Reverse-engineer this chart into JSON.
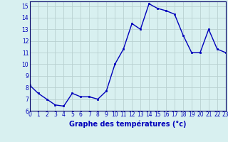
{
  "x": [
    0,
    1,
    2,
    3,
    4,
    5,
    6,
    7,
    8,
    9,
    10,
    11,
    12,
    13,
    14,
    15,
    16,
    17,
    18,
    19,
    20,
    21,
    22,
    23
  ],
  "y": [
    8.2,
    7.5,
    7.0,
    6.5,
    6.4,
    7.5,
    7.2,
    7.2,
    7.0,
    7.7,
    10.0,
    11.3,
    13.5,
    13.0,
    15.2,
    14.8,
    14.6,
    14.3,
    12.5,
    11.0,
    11.0,
    13.0,
    11.3,
    11.0
  ],
  "line_color": "#0000bb",
  "marker": "s",
  "marker_size": 2.0,
  "line_width": 1.0,
  "bg_color": "#d8f0f0",
  "grid_color": "#b8d0d0",
  "axis_label_color": "#0000bb",
  "tick_label_color": "#0000bb",
  "xlabel": "Graphe des températures (°c)",
  "xlim": [
    0,
    23
  ],
  "ylim": [
    6,
    15.4
  ],
  "yticks": [
    6,
    7,
    8,
    9,
    10,
    11,
    12,
    13,
    14,
    15
  ],
  "xticks": [
    0,
    1,
    2,
    3,
    4,
    5,
    6,
    7,
    8,
    9,
    10,
    11,
    12,
    13,
    14,
    15,
    16,
    17,
    18,
    19,
    20,
    21,
    22,
    23
  ],
  "xlabel_fontsize": 7.0,
  "tick_fontsize": 5.5
}
